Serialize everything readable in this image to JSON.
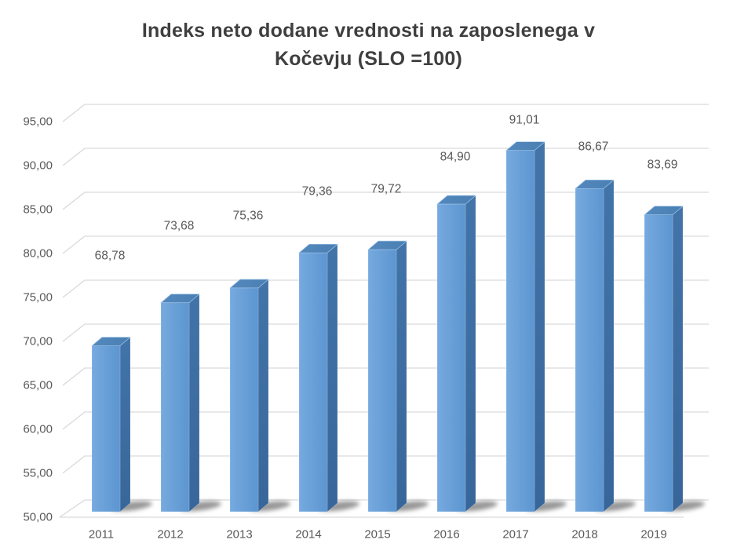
{
  "chart_data": {
    "type": "bar",
    "style": "3d-column",
    "title": "Indeks neto dodane vrednosti na zaposlenega v Kočevju (SLO =100)",
    "title_lines": {
      "line1": "Indeks neto dodane vrednosti na zaposlenega v",
      "line2": "Kočevju (SLO =100)"
    },
    "categories": [
      "2011",
      "2012",
      "2013",
      "2014",
      "2015",
      "2016",
      "2017",
      "2018",
      "2019"
    ],
    "values": [
      68.78,
      73.68,
      75.36,
      79.36,
      79.72,
      84.9,
      91.01,
      86.67,
      83.69
    ],
    "value_labels": [
      "68,78",
      "73,68",
      "75,36",
      "79,36",
      "79,72",
      "84,90",
      "91,01",
      "86,67",
      "83,69"
    ],
    "xlabel": "",
    "ylabel": "",
    "ylim": [
      50,
      95
    ],
    "y_tick_step": 5,
    "y_ticks": {
      "values": [
        50,
        55,
        60,
        65,
        70,
        75,
        80,
        85,
        90,
        95
      ],
      "labels": [
        "50,00",
        "55,00",
        "60,00",
        "65,00",
        "70,00",
        "75,00",
        "80,00",
        "85,00",
        "90,00",
        "95,00"
      ]
    },
    "grid": true,
    "legend": "none",
    "decimal_separator": ",",
    "colors": {
      "bar_front_light": "#76AADF",
      "bar_front": "#5C95D0",
      "bar_top_light": "#5489BE",
      "bar_top": "#4A7FB3",
      "bar_side_light": "#4274A9",
      "bar_side": "#38669A",
      "bar_edge_highlight": "#9CC3E8",
      "gridline": "#D9D9D9",
      "axis_text": "#595959",
      "title_text": "#3F3F3F",
      "shadow": "#595959",
      "background": "#FFFFFF"
    }
  }
}
